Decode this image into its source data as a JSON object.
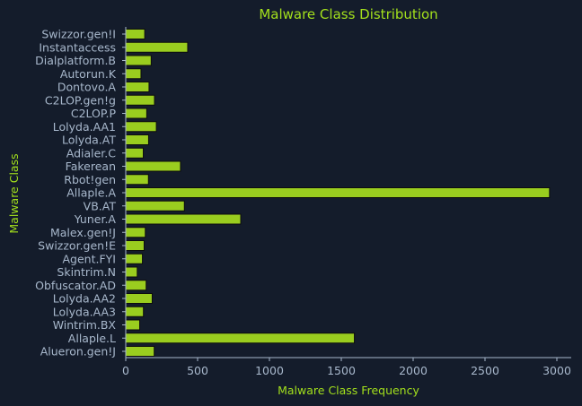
{
  "colors": {
    "background": "#141c2b",
    "bar_fill": "#9acd1f",
    "bar_edge": "#0d0d0d",
    "title_color": "#a3e01c",
    "tick_color": "#a8b8cc",
    "axis_color": "#a8b8cc"
  },
  "chart_data": {
    "type": "bar",
    "orientation": "horizontal",
    "title": "Malware Class Distribution",
    "xlabel": "Malware Class Frequency",
    "ylabel": "Malware Class",
    "xlim": [
      0,
      3100
    ],
    "xticks": [
      0,
      500,
      1000,
      1500,
      2000,
      2500,
      3000
    ],
    "grid": false,
    "categories": [
      "Swizzor.gen!I",
      "Instantaccess",
      "Dialplatform.B",
      "Autorun.K",
      "Dontovo.A",
      "C2LOP.gen!g",
      "C2LOP.P",
      "Lolyda.AA1",
      "Lolyda.AT",
      "Adialer.C",
      "Fakerean",
      "Rbot!gen",
      "Allaple.A",
      "VB.AT",
      "Yuner.A",
      "Malex.gen!J",
      "Swizzor.gen!E",
      "Agent.FYI",
      "Skintrim.N",
      "Obfuscator.AD",
      "Lolyda.AA2",
      "Lolyda.AA3",
      "Wintrim.BX",
      "Allaple.L",
      "Alueron.gen!J"
    ],
    "values": [
      132,
      431,
      177,
      106,
      162,
      200,
      146,
      213,
      159,
      122,
      381,
      158,
      2949,
      408,
      800,
      136,
      128,
      116,
      80,
      142,
      184,
      123,
      97,
      1591,
      198
    ]
  }
}
